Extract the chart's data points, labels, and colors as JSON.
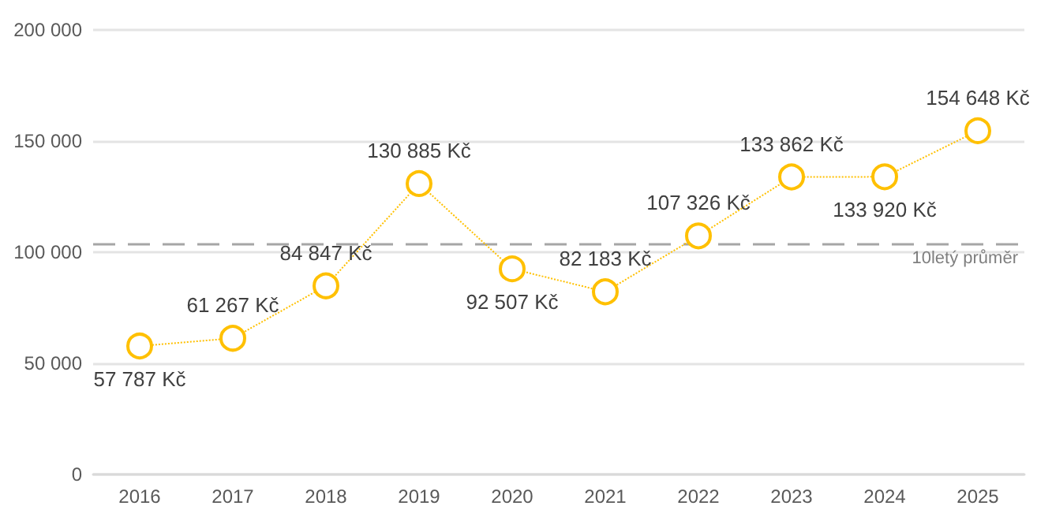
{
  "chart_data": {
    "type": "line",
    "categories": [
      "2016",
      "2017",
      "2018",
      "2019",
      "2020",
      "2021",
      "2022",
      "2023",
      "2024",
      "2025"
    ],
    "series": [
      {
        "color": "#ffc000",
        "values": [
          57787,
          61267,
          84847,
          130885,
          92507,
          82183,
          107326,
          133862,
          133920,
          154648
        ],
        "value_labels": [
          "57 787 Kč",
          "61 267 Kč",
          "84 847 Kč",
          "130 885 Kč",
          "92 507 Kč",
          "82 183 Kč",
          "107 326 Kč",
          "133 862 Kč",
          "133 920 Kč",
          "154 648 Kč"
        ]
      }
    ],
    "ylim": [
      0,
      200000
    ],
    "yticks": [
      0,
      {
        "value": 50000,
        "label": "50 000"
      },
      {
        "value": 100000,
        "label": "100 000"
      },
      {
        "value": 150000,
        "label": "150 000"
      },
      {
        "value": 200000,
        "label": "200 000"
      }
    ],
    "grid": "y",
    "marker": "circle",
    "line_style": "dotted",
    "ref_lines": [
      {
        "axis": "y",
        "value": 104000,
        "label": "10letý průměr",
        "color": "#a6a6a6",
        "line_style": "dashed"
      }
    ]
  }
}
